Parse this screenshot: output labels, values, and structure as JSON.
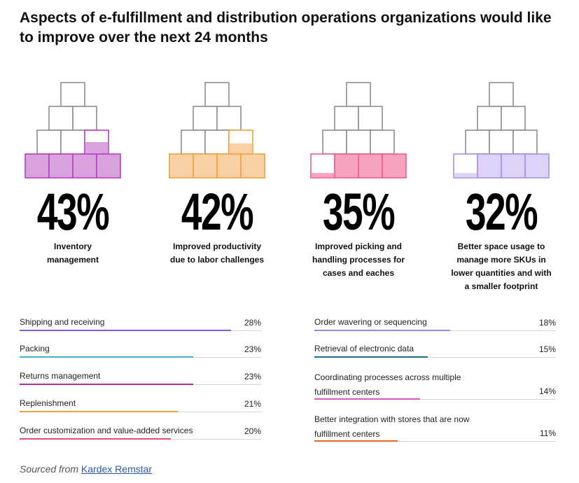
{
  "title": "Aspects of e-fulfillment and distribution operations organizations would like to improve over the next 24 months",
  "chart_data": [
    {
      "type": "infographic-pyramid",
      "items": [
        {
          "value": 43,
          "label": "43%",
          "caption": "Inventory management",
          "color": "#b83fc0",
          "light": "#d8a3dc"
        },
        {
          "value": 42,
          "label": "42%",
          "caption": "Improved productivity due to labor challenges",
          "color": "#f0a23a",
          "light": "#f8d2a4"
        },
        {
          "value": 35,
          "label": "35%",
          "caption": "Improved picking and handling processes for cases and eaches",
          "color": "#ef5a8f",
          "light": "#f7a3c0"
        },
        {
          "value": 32,
          "label": "32%",
          "caption": "Better space usage to manage more SKUs in lower quantities and with a smaller footprint",
          "color": "#a98ee8",
          "light": "#ddd3f6"
        }
      ]
    },
    {
      "type": "bar",
      "orientation": "horizontal",
      "categories": [
        "Shipping and receiving",
        "Packing",
        "Returns management",
        "Replenishment",
        "Order customization and value-added services"
      ],
      "values": [
        28,
        23,
        23,
        21,
        20
      ],
      "labels": [
        "28%",
        "23%",
        "23%",
        "21%",
        "20%"
      ],
      "colors": [
        "#8a5ce0",
        "#3bb7c9",
        "#b0309a",
        "#f0a23a",
        "#e8478a"
      ],
      "xlim": [
        0,
        32
      ]
    },
    {
      "type": "bar",
      "orientation": "horizontal",
      "categories": [
        "Order wavering or sequencing",
        "Retrieval of electronic data",
        "Coordinating processes across multiple fulfillment centers",
        "Better integration with stores that are now fulfillment centers"
      ],
      "values": [
        18,
        15,
        14,
        11
      ],
      "labels": [
        "18%",
        "15%",
        "14%",
        "11%"
      ],
      "colors": [
        "#9d86e8",
        "#1b6f8a",
        "#d956c8",
        "#e66a1a"
      ],
      "xlim": [
        0,
        32
      ]
    }
  ],
  "source": {
    "prefix": "Sourced from",
    "link": "Kardex Remstar"
  }
}
